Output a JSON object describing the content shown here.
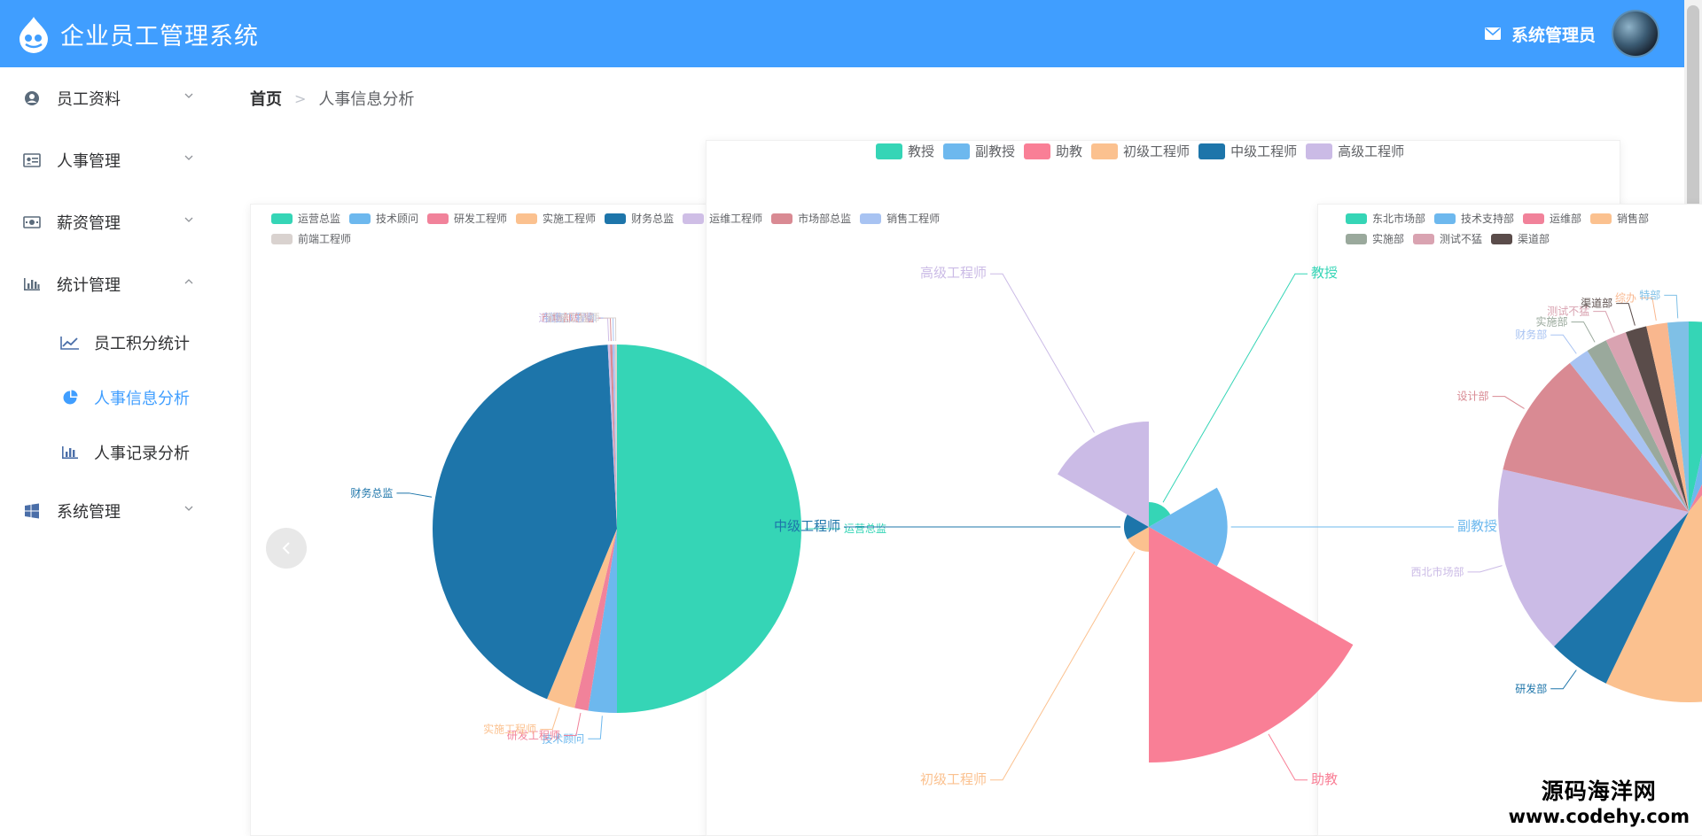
{
  "app": {
    "title": "企业员工管理系统"
  },
  "header": {
    "user_name": "系统管理员"
  },
  "sidebar": {
    "items": [
      {
        "label": "员工资料",
        "icon": "user-circle-icon",
        "expanded": false
      },
      {
        "label": "人事管理",
        "icon": "id-card-icon",
        "expanded": false
      },
      {
        "label": "薪资管理",
        "icon": "money-icon",
        "expanded": false
      },
      {
        "label": "统计管理",
        "icon": "bar-chart-icon",
        "expanded": true,
        "children": [
          {
            "label": "员工积分统计",
            "icon": "line-chart-icon"
          },
          {
            "label": "人事信息分析",
            "icon": "pie-chart-icon",
            "active": true
          },
          {
            "label": "人事记录分析",
            "icon": "bar-chart-icon"
          }
        ]
      },
      {
        "label": "系统管理",
        "icon": "windows-icon",
        "expanded": false
      }
    ]
  },
  "breadcrumb": {
    "home": "首页",
    "current": "人事信息分析"
  },
  "watermark": {
    "title": "源码海洋网",
    "url": "www.codehy.com"
  },
  "chart_data": [
    {
      "type": "pie",
      "legend_position": "top",
      "labels": [
        "运营总监",
        "技术顾问",
        "研发工程师",
        "实施工程师",
        "财务总监",
        "运维工程师",
        "市场部总监",
        "销售工程师",
        "前端工程师"
      ],
      "values": [
        50,
        2.5,
        1.2,
        2.5,
        43,
        0.2,
        0.2,
        0.2,
        0.2
      ],
      "colors": [
        "#35d5b6",
        "#6db8ee",
        "#f1829a",
        "#fbc18f",
        "#1d75aa",
        "#cfbee6",
        "#d98a93",
        "#a8c3f2",
        "#d9d2cf"
      ]
    },
    {
      "type": "pie",
      "rose": true,
      "legend_position": "top",
      "labels": [
        "教授",
        "副教授",
        "助教",
        "初级工程师",
        "中级工程师",
        "高级工程师"
      ],
      "values": [
        0.1,
        1,
        9,
        0.1,
        0.1,
        1.8
      ],
      "colors": [
        "#35d5b6",
        "#6db8ee",
        "#f97f96",
        "#fbc18f",
        "#1d75aa",
        "#cbbbe6"
      ]
    },
    {
      "type": "pie",
      "legend_position": "top",
      "labels": [
        "东北市场部",
        "技术支持部",
        "运维部",
        "销售部",
        "研发部",
        "西北市场部",
        "设计部",
        "财务部",
        "实施部",
        "测试不猛",
        "渠道部",
        "综办",
        "特部"
      ],
      "values": [
        2,
        2,
        2,
        26,
        3,
        9,
        6,
        1,
        1,
        1,
        1,
        1,
        1
      ],
      "colors": [
        "#35d5b6",
        "#6db8ee",
        "#f1829a",
        "#fbc18f",
        "#1d75aa",
        "#cbbbe6",
        "#d98a93",
        "#a8c3f2",
        "#9aa99c",
        "#d9a3b1",
        "#5a4c4a",
        "#f9b78e",
        "#7fc0e6"
      ],
      "legend_visible": [
        "东北市场部",
        "技术支持部",
        "运维部",
        "销售部",
        "实施部",
        "测试不猛",
        "渠道部"
      ]
    }
  ]
}
